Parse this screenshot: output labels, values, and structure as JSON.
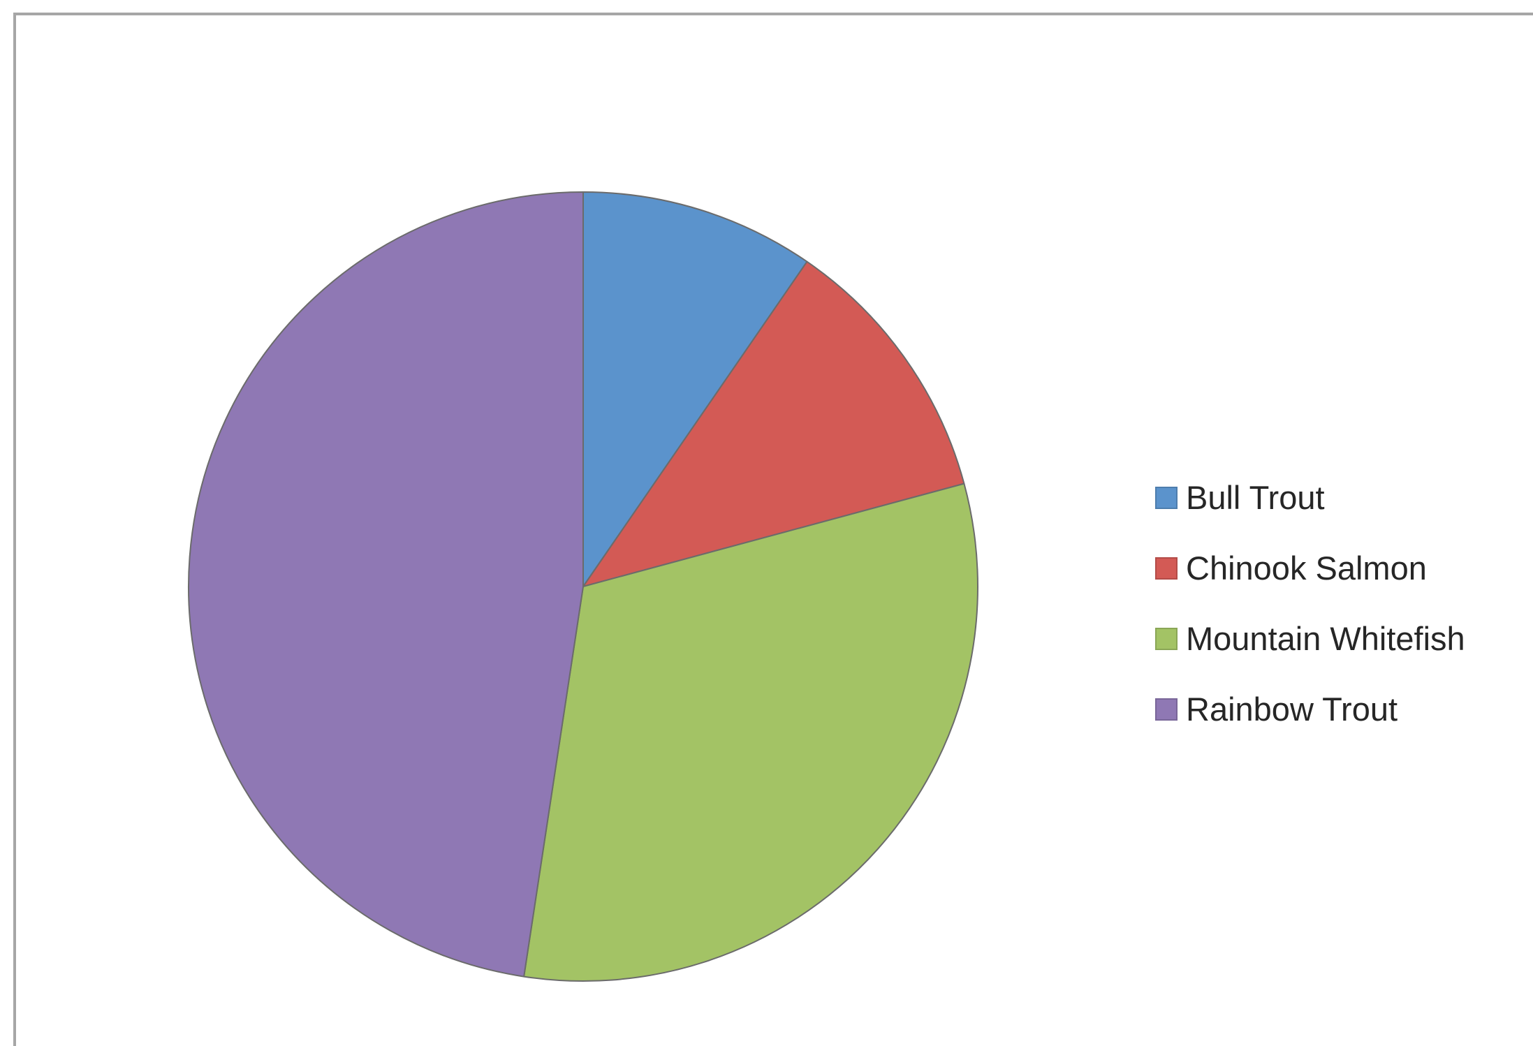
{
  "chart_data": {
    "type": "pie",
    "title": "",
    "start_angle_deg": 0,
    "direction": "clockwise",
    "legend_position": "right",
    "slices": [
      {
        "label": "Bull Trout",
        "value": 9.6,
        "color": "#5b93cc"
      },
      {
        "label": "Chinook Salmon",
        "value": 11.2,
        "color": "#d35a55"
      },
      {
        "label": "Mountain Whitefish",
        "value": 31.6,
        "color": "#a3c365"
      },
      {
        "label": "Rainbow Trout",
        "value": 47.6,
        "color": "#8f78b4"
      }
    ]
  }
}
